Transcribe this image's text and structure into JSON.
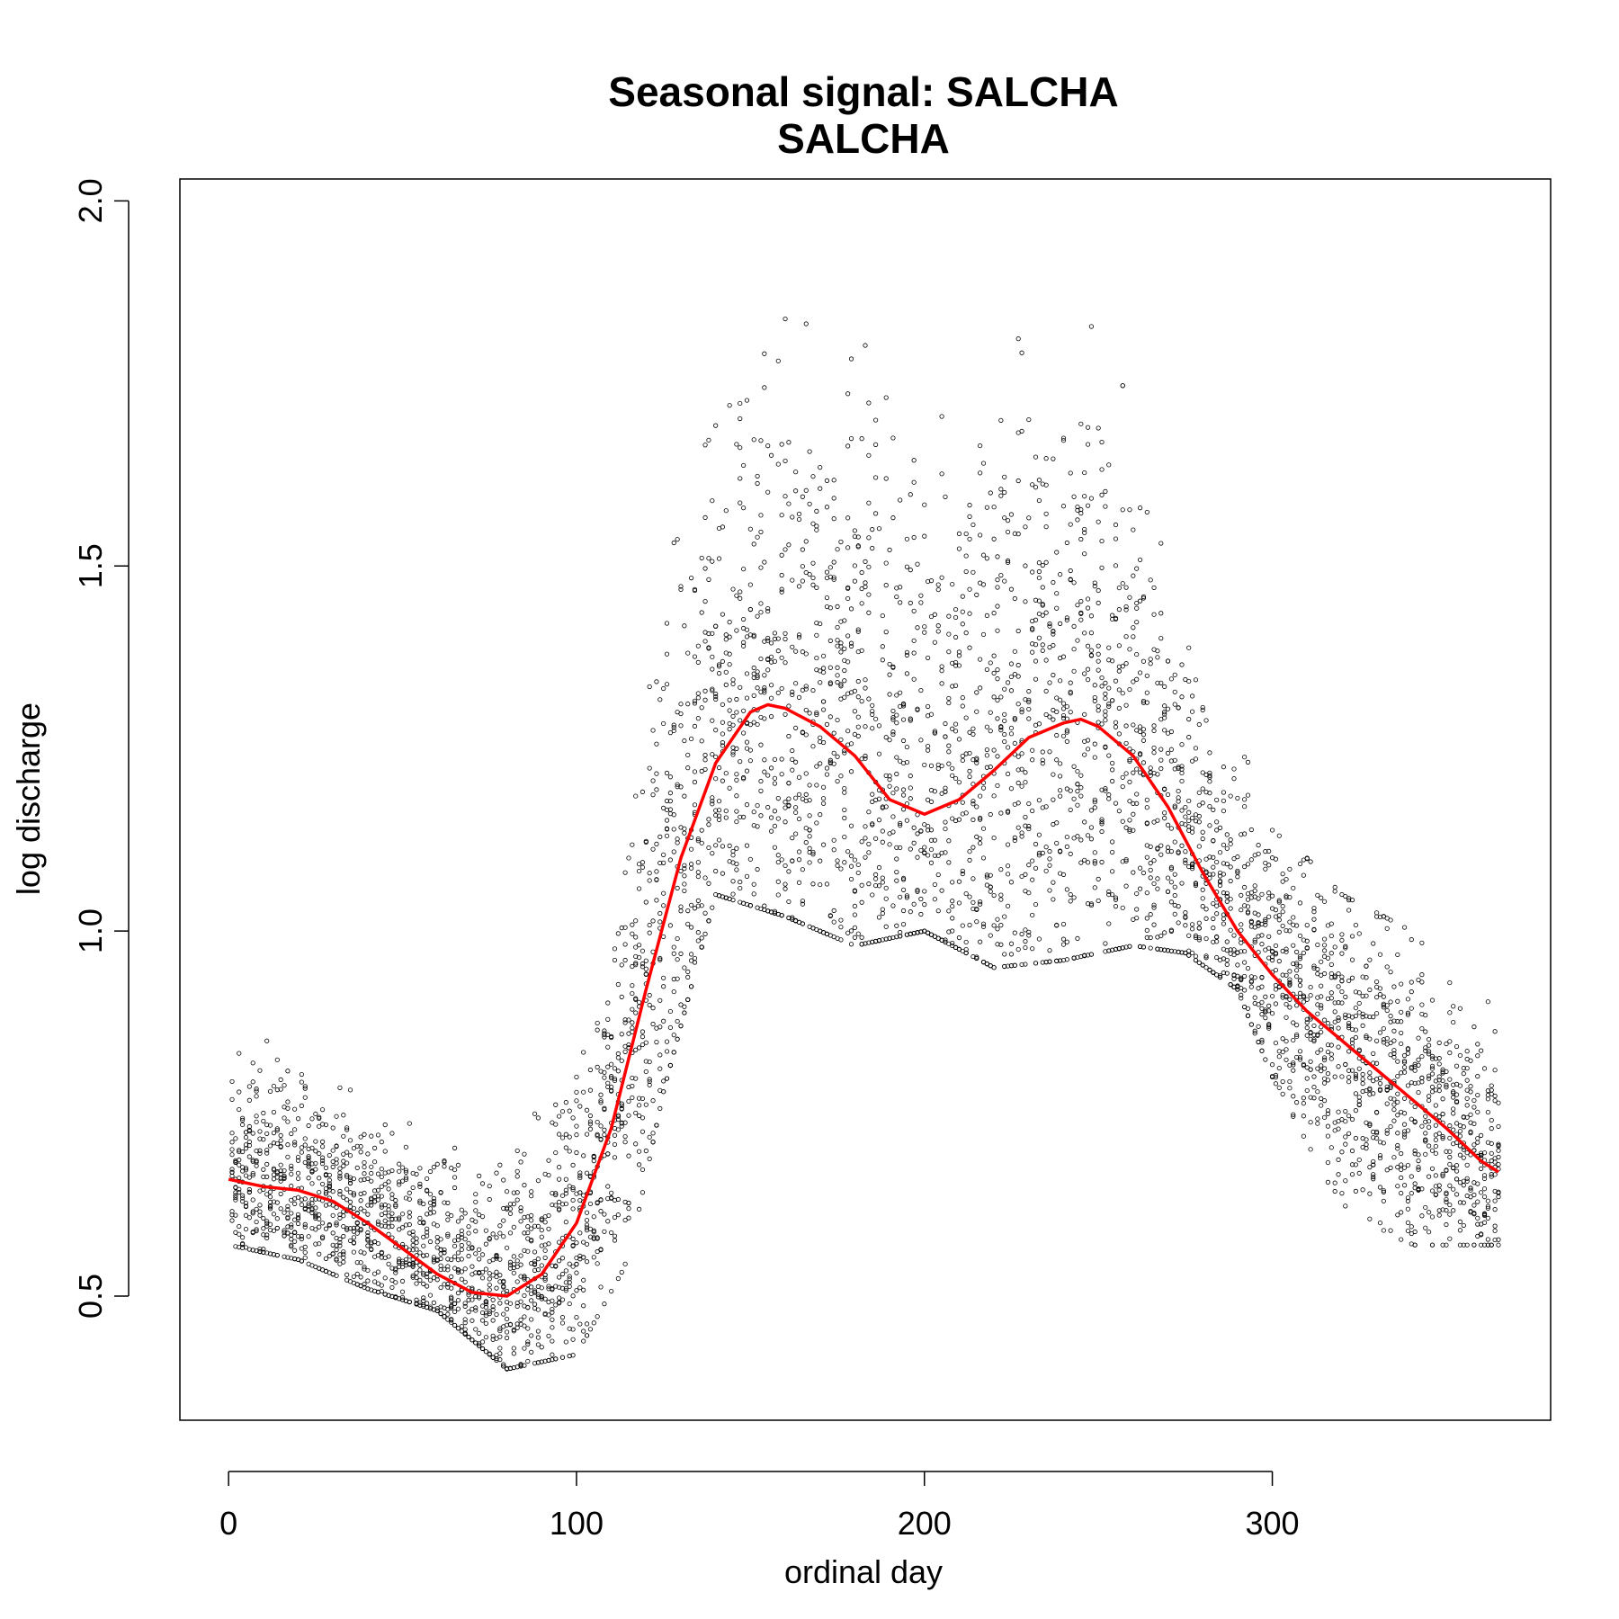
{
  "chart_data": {
    "type": "scatter",
    "title": "Seasonal signal: SALCHA",
    "subtitle": "SALCHA",
    "xlabel": "ordinal day",
    "ylabel": "log discharge",
    "xlim": [
      -14,
      380
    ],
    "ylim": [
      0.33,
      2.03
    ],
    "x_ticks": [
      0,
      100,
      200,
      300
    ],
    "x_tick_labels": [
      "0",
      "100",
      "200",
      "300"
    ],
    "y_ticks": [
      0.5,
      1.0,
      1.5,
      2.0
    ],
    "y_tick_labels": [
      "0.5",
      "1.0",
      "1.5",
      "2.0"
    ],
    "grid": false,
    "legend": "none",
    "point_color": "#000000",
    "fit_color": "#ff0000",
    "observations_note": "daily log-discharge observations for every year of record, plotted as small open circles",
    "fitted_seasonal_curve": {
      "x": [
        0,
        10,
        20,
        30,
        40,
        50,
        60,
        70,
        80,
        90,
        100,
        110,
        120,
        130,
        140,
        150,
        155,
        160,
        170,
        180,
        190,
        200,
        210,
        220,
        230,
        240,
        245,
        250,
        260,
        270,
        280,
        290,
        300,
        310,
        320,
        330,
        340,
        350,
        360,
        365
      ],
      "y": [
        0.66,
        0.65,
        0.645,
        0.63,
        0.6,
        0.565,
        0.53,
        0.505,
        0.5,
        0.53,
        0.6,
        0.73,
        0.92,
        1.1,
        1.23,
        1.3,
        1.31,
        1.305,
        1.28,
        1.24,
        1.18,
        1.16,
        1.18,
        1.22,
        1.265,
        1.285,
        1.29,
        1.28,
        1.24,
        1.17,
        1.08,
        1.0,
        0.94,
        0.89,
        0.85,
        0.81,
        0.77,
        0.73,
        0.685,
        0.67
      ]
    },
    "observation_bands": [
      {
        "x": [
          0,
          20,
          40,
          60,
          80,
          100,
          115,
          125,
          140,
          160,
          180,
          200,
          220,
          240,
          260,
          275,
          290,
          300,
          320,
          340,
          365
        ],
        "y_low": [
          0.57,
          0.55,
          0.51,
          0.48,
          0.4,
          0.42,
          0.55,
          0.78,
          1.05,
          1.02,
          0.98,
          1.0,
          0.95,
          0.96,
          0.98,
          0.97,
          0.92,
          0.8,
          0.62,
          0.57,
          0.57
        ],
        "y_high": [
          0.89,
          0.83,
          0.78,
          0.76,
          0.74,
          0.8,
          1.1,
          1.62,
          1.82,
          1.86,
          1.88,
          1.85,
          1.86,
          1.9,
          1.72,
          1.52,
          1.3,
          1.15,
          1.05,
          1.0,
          0.89
        ]
      }
    ]
  }
}
